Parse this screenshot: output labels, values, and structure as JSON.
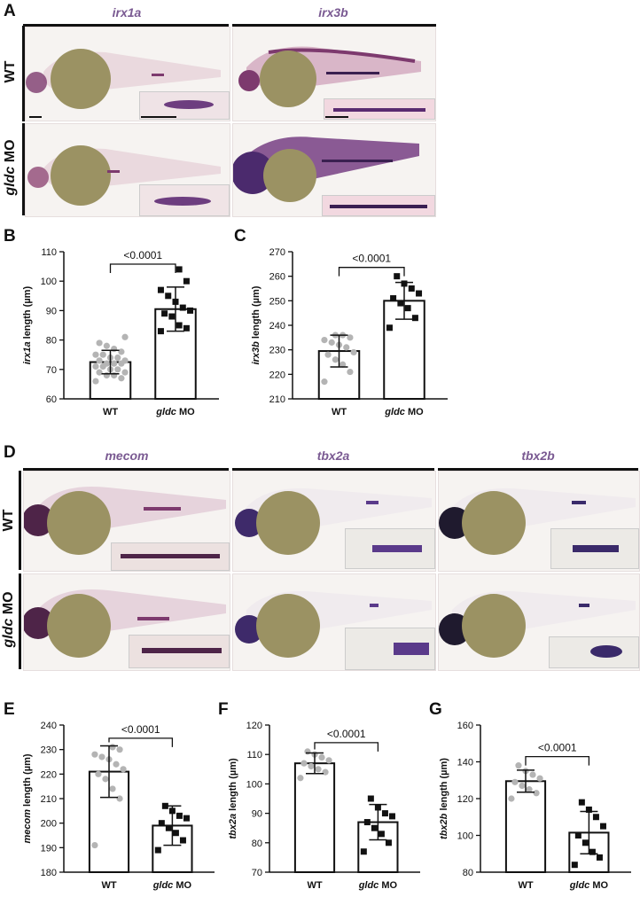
{
  "panels": {
    "A": {
      "letter": "A",
      "genes": [
        "irx1a",
        "irx3b"
      ],
      "rows": [
        "WT",
        "gldc MO"
      ]
    },
    "B": {
      "letter": "B"
    },
    "C": {
      "letter": "C"
    },
    "D": {
      "letter": "D",
      "genes": [
        "mecom",
        "tbx2a",
        "tbx2b"
      ],
      "rows": [
        "WT",
        "gldc MO"
      ]
    },
    "E": {
      "letter": "E"
    },
    "F": {
      "letter": "F"
    },
    "G": {
      "letter": "G"
    }
  },
  "colors": {
    "embryo_stain": "#7d3a6e",
    "yolk": "#9b9263",
    "gene_label": "#7a5a92",
    "wt_dot": "#b4b4b4",
    "mo_dot": "#111111"
  },
  "chart_data": [
    {
      "id": "B",
      "type": "bar",
      "categories": [
        "WT",
        "gldc MO"
      ],
      "category_italic_part": [
        "",
        "gldc"
      ],
      "ylabel_italic": "irx1a",
      "ylabel_rest": " length (µm)",
      "ylim": [
        60,
        110
      ],
      "yticks": [
        60,
        70,
        80,
        90,
        100,
        110
      ],
      "values": [
        72.5,
        90.5
      ],
      "sd": [
        4,
        7.5
      ],
      "points": [
        [
          66,
          67,
          68,
          68,
          69,
          69,
          70,
          70,
          71,
          71,
          72,
          72,
          72,
          73,
          73,
          74,
          74,
          75,
          75,
          76,
          77,
          78,
          79,
          81
        ],
        [
          83,
          84,
          85,
          88,
          89,
          90,
          91,
          93,
          95,
          97,
          100,
          104
        ]
      ],
      "pvalue": "<0.0001"
    },
    {
      "id": "C",
      "type": "bar",
      "categories": [
        "WT",
        "gldc MO"
      ],
      "category_italic_part": [
        "",
        "gldc"
      ],
      "ylabel_italic": "irx3b",
      "ylabel_rest": " length (µm)",
      "ylim": [
        210,
        270
      ],
      "yticks": [
        210,
        220,
        230,
        240,
        250,
        260,
        270
      ],
      "values": [
        229.5,
        250
      ],
      "sd": [
        6.5,
        7.5
      ],
      "points": [
        [
          217,
          221,
          224,
          226,
          228,
          229,
          231,
          232,
          233,
          234,
          235,
          236,
          236
        ],
        [
          239,
          243,
          247,
          249,
          251,
          253,
          255,
          257,
          260
        ]
      ],
      "pvalue": "<0.0001"
    },
    {
      "id": "E",
      "type": "bar",
      "categories": [
        "WT",
        "gldc MO"
      ],
      "category_italic_part": [
        "",
        "gldc"
      ],
      "ylabel_italic": "mecom",
      "ylabel_rest": " length (µm)",
      "ylim": [
        180,
        240
      ],
      "yticks": [
        180,
        190,
        200,
        210,
        220,
        230,
        240
      ],
      "values": [
        221,
        199
      ],
      "sd": [
        10.5,
        8
      ],
      "points": [
        [
          191,
          210,
          214,
          218,
          220,
          222,
          224,
          226,
          227,
          228,
          230,
          231
        ],
        [
          189,
          193,
          196,
          198,
          200,
          202,
          203,
          205,
          207
        ]
      ],
      "pvalue": "<0.0001"
    },
    {
      "id": "F",
      "type": "bar",
      "categories": [
        "WT",
        "gldc MO"
      ],
      "category_italic_part": [
        "",
        "gldc"
      ],
      "ylabel_italic": "tbx2a",
      "ylabel_rest": " length (µm)",
      "ylim": [
        70,
        120
      ],
      "yticks": [
        70,
        80,
        90,
        100,
        110,
        120
      ],
      "values": [
        107,
        87
      ],
      "sd": [
        3.5,
        6
      ],
      "points": [
        [
          102,
          104,
          105,
          106,
          107,
          108,
          109,
          110,
          111
        ],
        [
          77,
          80,
          83,
          85,
          87,
          89,
          90,
          92,
          95
        ]
      ],
      "pvalue": "<0.0001"
    },
    {
      "id": "G",
      "type": "bar",
      "categories": [
        "WT",
        "gldc MO"
      ],
      "category_italic_part": [
        "",
        "gldc"
      ],
      "ylabel_italic": "tbx2b",
      "ylabel_rest": " length (µm)",
      "ylim": [
        80,
        160
      ],
      "yticks": [
        80,
        100,
        120,
        140,
        160
      ],
      "values": [
        129.5,
        101.5
      ],
      "sd": [
        6,
        11.5
      ],
      "points": [
        [
          120,
          123,
          125,
          127,
          129,
          131,
          133,
          135,
          138
        ],
        [
          84,
          88,
          91,
          96,
          100,
          105,
          110,
          114,
          118
        ]
      ],
      "pvalue": "<0.0001"
    }
  ]
}
